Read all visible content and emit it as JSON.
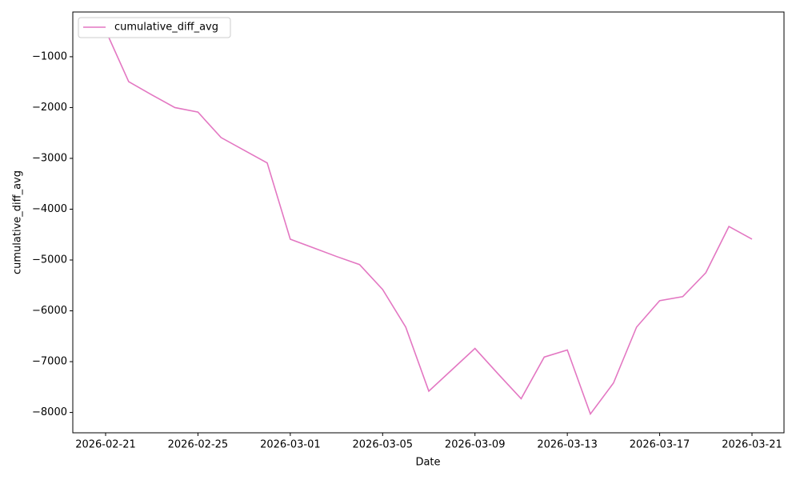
{
  "chart_data": {
    "type": "line",
    "x_label": "Date",
    "y_label": "cumulative_diff_avg",
    "x": [
      "2026-02-21",
      "2026-02-22",
      "2026-02-23",
      "2026-02-24",
      "2026-02-25",
      "2026-02-26",
      "2026-02-27",
      "2026-02-28",
      "2026-03-01",
      "2026-03-02",
      "2026-03-03",
      "2026-03-04",
      "2026-03-05",
      "2026-03-06",
      "2026-03-07",
      "2026-03-08",
      "2026-03-09",
      "2026-03-10",
      "2026-03-11",
      "2026-03-12",
      "2026-03-13",
      "2026-03-14",
      "2026-03-15",
      "2026-03-16",
      "2026-03-17",
      "2026-03-18",
      "2026-03-19",
      "2026-03-20",
      "2026-03-21"
    ],
    "series": [
      {
        "name": "cumulative_diff_avg",
        "color": "#e377c2",
        "values": [
          -480,
          -1490,
          -1750,
          -2000,
          -2090,
          -2590,
          -2840,
          -3090,
          -4590,
          -4760,
          -4930,
          -5090,
          -5580,
          -6320,
          -7580,
          -7160,
          -6740,
          -7240,
          -7730,
          -6910,
          -6770,
          -8030,
          -7420,
          -6320,
          -5800,
          -5720,
          -5250,
          -4340,
          -4590
        ]
      }
    ],
    "xticks": [
      "2026-02-21",
      "2026-02-25",
      "2026-03-01",
      "2026-03-05",
      "2026-03-09",
      "2026-03-13",
      "2026-03-17",
      "2026-03-21"
    ],
    "ylim": [
      -8400,
      -120
    ],
    "yticks": [
      {
        "value": -8000,
        "label": "−8000"
      },
      {
        "value": -7000,
        "label": "−7000"
      },
      {
        "value": -6000,
        "label": "−6000"
      },
      {
        "value": -5000,
        "label": "−5000"
      },
      {
        "value": -4000,
        "label": "−4000"
      },
      {
        "value": -3000,
        "label": "−3000"
      },
      {
        "value": -2000,
        "label": "−2000"
      },
      {
        "value": -1000,
        "label": "−1000"
      }
    ],
    "legend": "upper left"
  }
}
